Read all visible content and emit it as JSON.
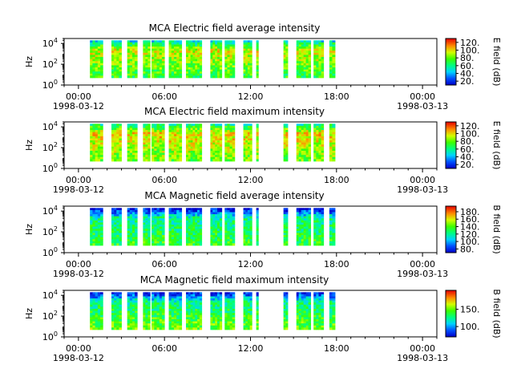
{
  "chart_data": [
    {
      "type": "heatmap",
      "title": "MCA  Electric field average intensity",
      "ylabel": "Hz",
      "y_scale": "log",
      "ylim": [
        1,
        30000
      ],
      "y_ticks": [
        {
          "base": "10",
          "exp": "0"
        },
        {
          "base": "10",
          "exp": "2"
        },
        {
          "base": "10",
          "exp": "4"
        }
      ],
      "x_ticks": [
        {
          "time": "00:00",
          "date": "1998-03-12"
        },
        {
          "time": "06:00",
          "date": ""
        },
        {
          "time": "12:00",
          "date": ""
        },
        {
          "time": "18:00",
          "date": ""
        },
        {
          "time": "00:00",
          "date": "1998-03-13"
        }
      ],
      "xlim_hours": [
        -1,
        25
      ],
      "data_freq_range_hz": [
        5,
        20000
      ],
      "colorbar": {
        "label": "E field (dB)",
        "min": 10,
        "max": 130,
        "ticks": [
          "20.",
          "40.",
          "60.",
          "80.",
          "100.",
          "120."
        ]
      },
      "palette": "rainbow",
      "level_low": 70,
      "level_high": 95,
      "level_top": 50,
      "intervals": [
        [
          0.8,
          1.7
        ],
        [
          2.3,
          3.0
        ],
        [
          3.4,
          4.1
        ],
        [
          4.5,
          5.0
        ],
        [
          5.1,
          6.0
        ],
        [
          6.3,
          7.2
        ],
        [
          7.5,
          8.6
        ],
        [
          9.2,
          10.0
        ],
        [
          10.2,
          10.9
        ],
        [
          11.5,
          12.1
        ],
        [
          12.4,
          12.55
        ],
        [
          14.3,
          14.6
        ],
        [
          15.2,
          16.2
        ],
        [
          16.4,
          17.1
        ],
        [
          17.5,
          17.9
        ]
      ]
    },
    {
      "type": "heatmap",
      "title": "MCA  Electric field maximum intensity",
      "ylabel": "Hz",
      "y_scale": "log",
      "ylim": [
        1,
        30000
      ],
      "y_ticks": [
        {
          "base": "10",
          "exp": "0"
        },
        {
          "base": "10",
          "exp": "2"
        },
        {
          "base": "10",
          "exp": "4"
        }
      ],
      "x_ticks": [
        {
          "time": "00:00",
          "date": "1998-03-12"
        },
        {
          "time": "06:00",
          "date": ""
        },
        {
          "time": "12:00",
          "date": ""
        },
        {
          "time": "18:00",
          "date": ""
        },
        {
          "time": "00:00",
          "date": "1998-03-13"
        }
      ],
      "xlim_hours": [
        -1,
        25
      ],
      "data_freq_range_hz": [
        5,
        20000
      ],
      "colorbar": {
        "label": "E field (dB)",
        "min": 10,
        "max": 130,
        "ticks": [
          "20.",
          "40.",
          "60.",
          "80.",
          "100.",
          "120."
        ]
      },
      "palette": "rainbow",
      "level_low": 80,
      "level_high": 100,
      "level_top": 60,
      "intervals": [
        [
          0.8,
          1.7
        ],
        [
          2.3,
          3.0
        ],
        [
          3.4,
          4.1
        ],
        [
          4.5,
          5.0
        ],
        [
          5.1,
          6.0
        ],
        [
          6.3,
          7.2
        ],
        [
          7.5,
          8.6
        ],
        [
          9.2,
          10.0
        ],
        [
          10.2,
          10.9
        ],
        [
          11.5,
          12.1
        ],
        [
          12.4,
          12.55
        ],
        [
          14.3,
          14.6
        ],
        [
          15.2,
          16.2
        ],
        [
          16.4,
          17.1
        ],
        [
          17.5,
          17.9
        ]
      ]
    },
    {
      "type": "heatmap",
      "title": "MCA  Magnetic field average intensity",
      "ylabel": "Hz",
      "y_scale": "log",
      "ylim": [
        1,
        30000
      ],
      "y_ticks": [
        {
          "base": "10",
          "exp": "0"
        },
        {
          "base": "10",
          "exp": "2"
        },
        {
          "base": "10",
          "exp": "4"
        }
      ],
      "x_ticks": [
        {
          "time": "00:00",
          "date": "1998-03-12"
        },
        {
          "time": "06:00",
          "date": ""
        },
        {
          "time": "12:00",
          "date": ""
        },
        {
          "time": "18:00",
          "date": ""
        },
        {
          "time": "00:00",
          "date": "1998-03-13"
        }
      ],
      "xlim_hours": [
        -1,
        25
      ],
      "data_freq_range_hz": [
        5,
        20000
      ],
      "colorbar": {
        "label": "B field (dB)",
        "min": 70,
        "max": 195,
        "ticks": [
          "80.",
          "100.",
          "120.",
          "140.",
          "160.",
          "180."
        ]
      },
      "palette": "rainbow",
      "level_low": 135,
      "level_high": 120,
      "level_top": 75,
      "intervals": [
        [
          0.8,
          1.7
        ],
        [
          2.3,
          3.0
        ],
        [
          3.4,
          4.1
        ],
        [
          4.5,
          5.0
        ],
        [
          5.1,
          6.0
        ],
        [
          6.3,
          7.2
        ],
        [
          7.5,
          8.6
        ],
        [
          9.2,
          10.0
        ],
        [
          10.2,
          10.9
        ],
        [
          11.5,
          12.1
        ],
        [
          12.4,
          12.55
        ],
        [
          14.3,
          14.6
        ],
        [
          15.2,
          16.2
        ],
        [
          16.4,
          17.1
        ],
        [
          17.5,
          17.9
        ]
      ]
    },
    {
      "type": "heatmap",
      "title": "MCA  Magnetic field maximum intensity",
      "ylabel": "Hz",
      "y_scale": "log",
      "ylim": [
        1,
        30000
      ],
      "y_ticks": [
        {
          "base": "10",
          "exp": "0"
        },
        {
          "base": "10",
          "exp": "2"
        },
        {
          "base": "10",
          "exp": "4"
        }
      ],
      "x_ticks": [
        {
          "time": "00:00",
          "date": "1998-03-12"
        },
        {
          "time": "06:00",
          "date": ""
        },
        {
          "time": "12:00",
          "date": ""
        },
        {
          "time": "18:00",
          "date": ""
        },
        {
          "time": "00:00",
          "date": "1998-03-13"
        }
      ],
      "xlim_hours": [
        -1,
        25
      ],
      "data_freq_range_hz": [
        5,
        20000
      ],
      "colorbar": {
        "label": "B field (dB)",
        "min": 70,
        "max": 205,
        "ticks": [
          "100.",
          "150."
        ]
      },
      "palette": "rainbow",
      "level_low": 150,
      "level_high": 125,
      "level_top": 80,
      "intervals": [
        [
          0.8,
          1.7
        ],
        [
          2.3,
          3.0
        ],
        [
          3.4,
          4.1
        ],
        [
          4.5,
          5.0
        ],
        [
          5.1,
          6.0
        ],
        [
          6.3,
          7.2
        ],
        [
          7.5,
          8.6
        ],
        [
          9.2,
          10.0
        ],
        [
          10.2,
          10.9
        ],
        [
          11.5,
          12.1
        ],
        [
          12.4,
          12.55
        ],
        [
          14.3,
          14.6
        ],
        [
          15.2,
          16.2
        ],
        [
          16.4,
          17.1
        ],
        [
          17.5,
          17.9
        ]
      ]
    }
  ]
}
